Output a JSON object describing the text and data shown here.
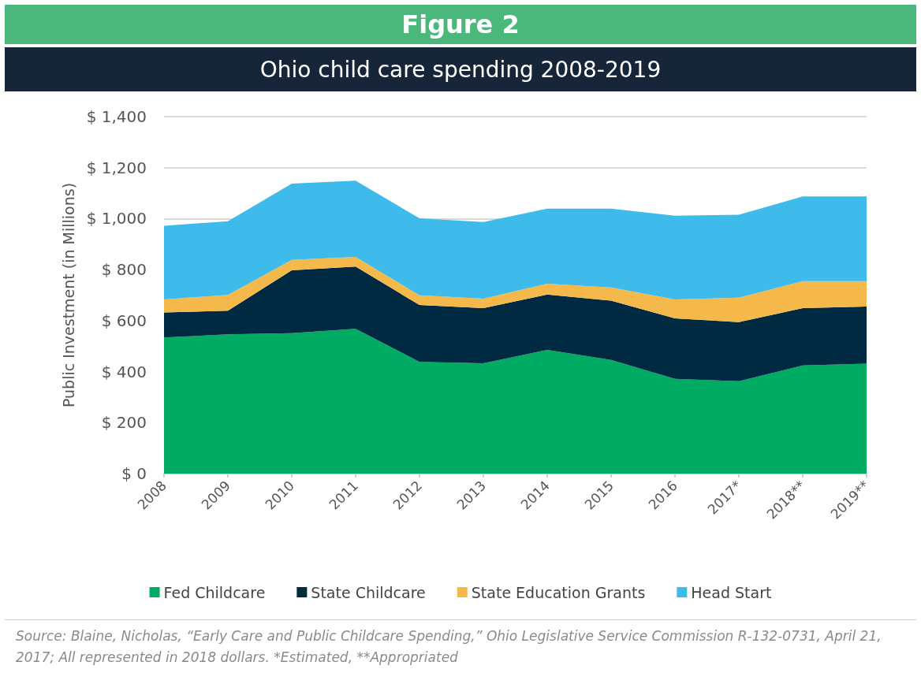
{
  "chart_data": {
    "type": "area",
    "title": "Figure 2",
    "subtitle": "Ohio child care spending 2008-2019",
    "ylabel": "Public Investment (in Millions)",
    "categories": [
      "2008",
      "2009",
      "2010",
      "2011",
      "2012",
      "2013",
      "2014",
      "2015",
      "2016",
      "2017*",
      "2018**",
      "2019**"
    ],
    "stacked": true,
    "series": [
      {
        "name": "Fed Childcare",
        "color": "#00ab63",
        "values": [
          534,
          546,
          551,
          568,
          438,
          433,
          485,
          446,
          372,
          362,
          424,
          431
        ]
      },
      {
        "name": "State Childcare",
        "color": "#002a42",
        "values": [
          98,
          93,
          246,
          244,
          223,
          216,
          217,
          232,
          237,
          232,
          225,
          224
        ]
      },
      {
        "name": "State Education Grants",
        "color": "#f4b94a",
        "values": [
          51,
          62,
          41,
          38,
          38,
          37,
          43,
          52,
          74,
          96,
          106,
          100
        ]
      },
      {
        "name": "Head Start",
        "color": "#3ebbea",
        "values": [
          289,
          289,
          299,
          299,
          302,
          301,
          294,
          309,
          328,
          325,
          332,
          332
        ]
      }
    ],
    "ylim": [
      0,
      1400
    ],
    "yticks": [
      {
        "value": 0,
        "label": "$ 0"
      },
      {
        "value": 200,
        "label": "$ 200"
      },
      {
        "value": 400,
        "label": "$ 400"
      },
      {
        "value": 600,
        "label": "$ 600"
      },
      {
        "value": 800,
        "label": "$ 800"
      },
      {
        "value": 1000,
        "label": "$ 1,000"
      },
      {
        "value": 1200,
        "label": "$ 1,200"
      },
      {
        "value": 1400,
        "label": "$ 1,400"
      }
    ],
    "grid": "y",
    "legend": "bottom",
    "annotations": [
      "Source: Blaine, Nicholas, “Early Care and Public Childcare Spending,” Ohio Legislative Service Commission R-132-0731, April 21, 2017; All represented in 2018 dollars. *Estimated, **Appropriated"
    ]
  }
}
